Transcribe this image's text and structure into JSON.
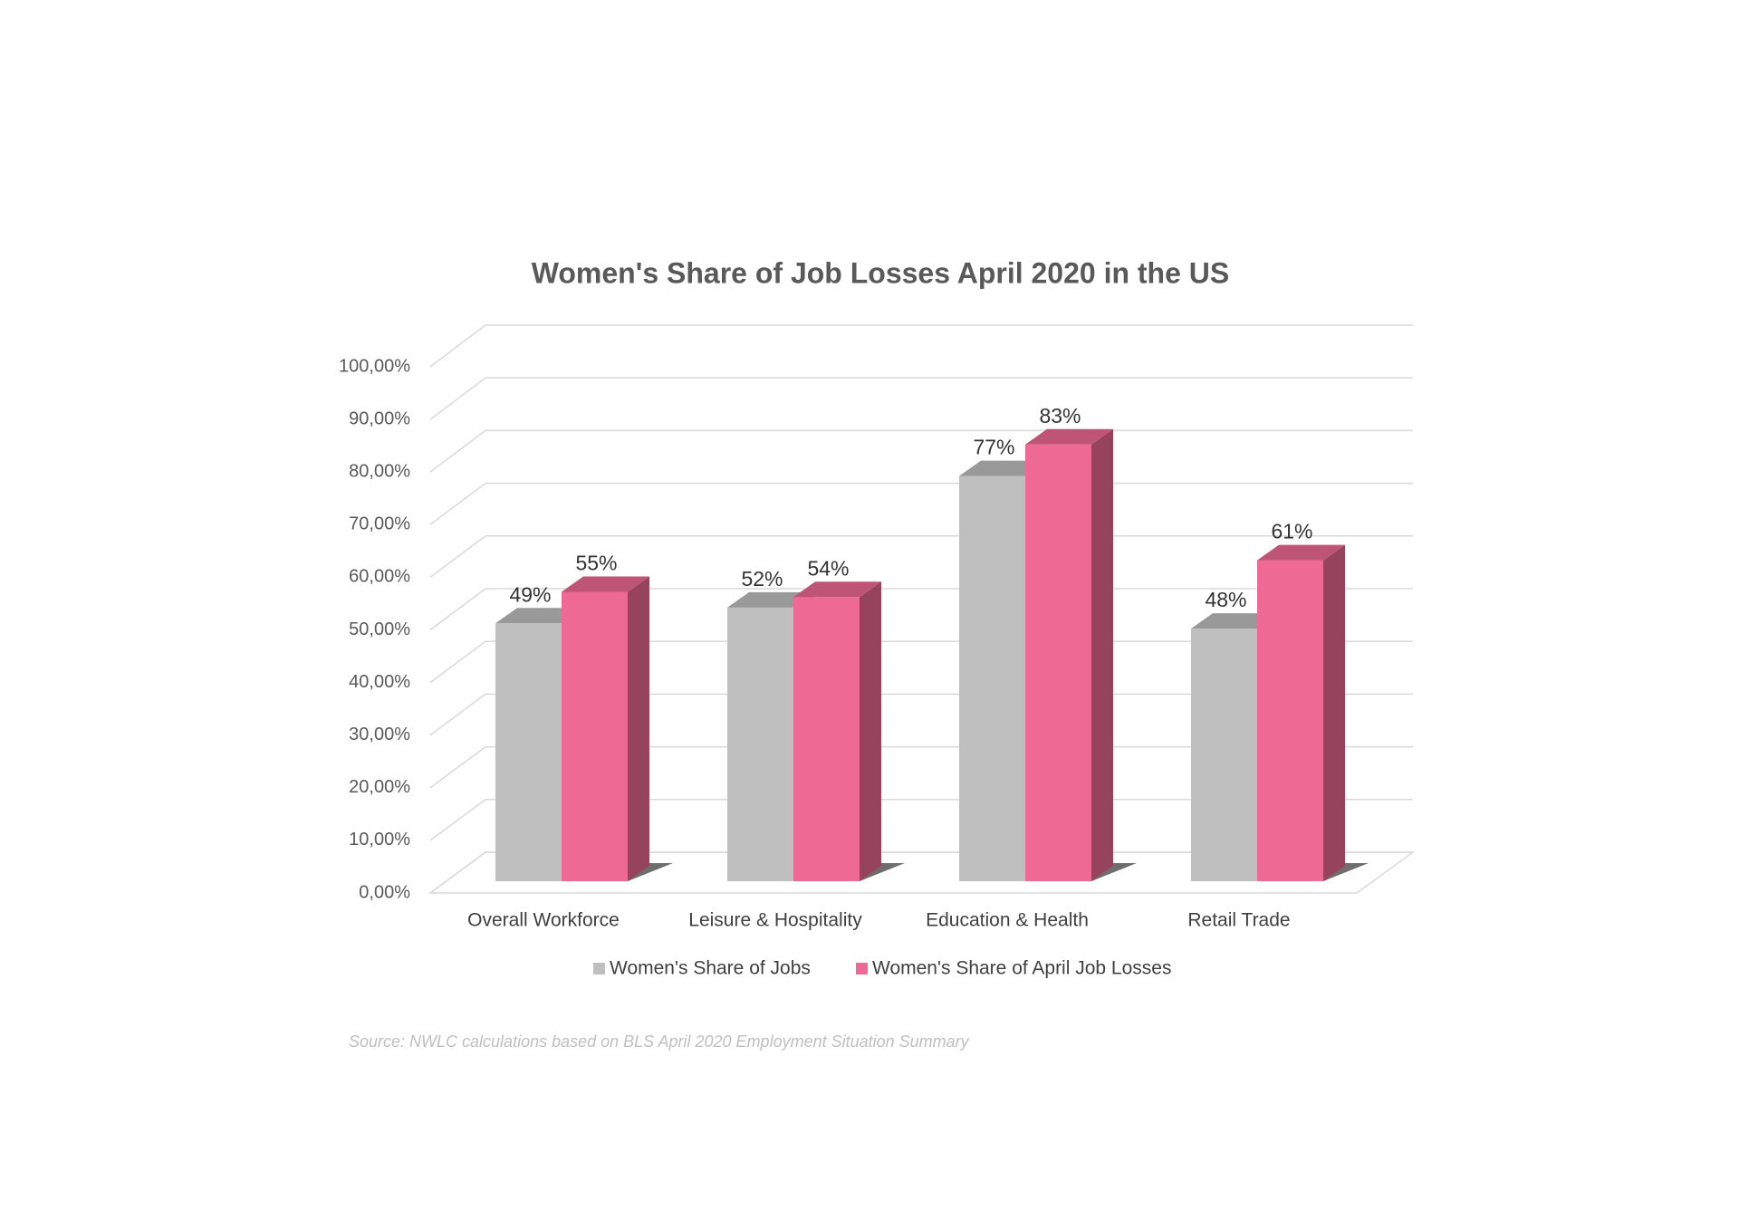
{
  "chart_data": {
    "type": "bar3d",
    "title": "Women's Share of Job Losses April 2020 in the US",
    "categories": [
      "Overall Workforce",
      "Leisure & Hospitality",
      "Education & Health",
      "Retail Trade"
    ],
    "series": [
      {
        "name": "Women's Share of Jobs",
        "color": "#bfbfbf",
        "values": [
          49,
          52,
          77,
          48
        ],
        "value_labels": [
          "49%",
          "52%",
          "77%",
          "48%"
        ]
      },
      {
        "name": "Women's Share of April Job Losses",
        "color": "#ee6a94",
        "values": [
          55,
          54,
          83,
          61
        ],
        "value_labels": [
          "55%",
          "54%",
          "83%",
          "61%"
        ]
      }
    ],
    "ylim": [
      0,
      100
    ],
    "yticks": [
      {
        "value": 0,
        "label": "0,00%"
      },
      {
        "value": 10,
        "label": "10,00%"
      },
      {
        "value": 20,
        "label": "20,00%"
      },
      {
        "value": 30,
        "label": "30,00%"
      },
      {
        "value": 40,
        "label": "40,00%"
      },
      {
        "value": 50,
        "label": "50,00%"
      },
      {
        "value": 60,
        "label": "60,00%"
      },
      {
        "value": 70,
        "label": "70,00%"
      },
      {
        "value": 80,
        "label": "80,00%"
      },
      {
        "value": 90,
        "label": "90,00%"
      },
      {
        "value": 100,
        "label": "100,00%"
      }
    ],
    "grid": true,
    "legend": "bottom",
    "source": "Source: NWLC calculations based on BLS April 2020 Employment Situation Summary"
  }
}
